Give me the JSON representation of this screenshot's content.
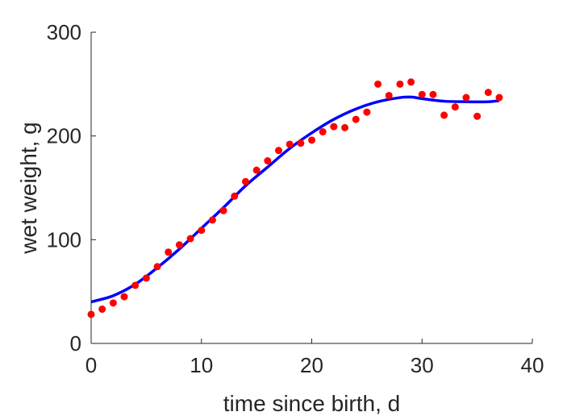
{
  "chart_data": {
    "type": "scatter",
    "title": "",
    "xlabel": "time since birth, d",
    "ylabel": "wet weight, g",
    "xlim": [
      0,
      40
    ],
    "ylim": [
      0,
      300
    ],
    "xticks": [
      0,
      10,
      20,
      30,
      40
    ],
    "yticks": [
      0,
      100,
      200,
      300
    ],
    "grid": false,
    "series": [
      {
        "type": "scatter",
        "color": "#ff0000",
        "points": [
          [
            0,
            28
          ],
          [
            1,
            33
          ],
          [
            2,
            39
          ],
          [
            3,
            45
          ],
          [
            4,
            56
          ],
          [
            5,
            63
          ],
          [
            6,
            74
          ],
          [
            7,
            88
          ],
          [
            8,
            95
          ],
          [
            9,
            101
          ],
          [
            10,
            109
          ],
          [
            11,
            119
          ],
          [
            12,
            128
          ],
          [
            13,
            142
          ],
          [
            14,
            156
          ],
          [
            15,
            167
          ],
          [
            16,
            176
          ],
          [
            17,
            186
          ],
          [
            18,
            192
          ],
          [
            19,
            193
          ],
          [
            20,
            196
          ],
          [
            21,
            204
          ],
          [
            22,
            209
          ],
          [
            23,
            208
          ],
          [
            24,
            216
          ],
          [
            25,
            223
          ],
          [
            26,
            250
          ],
          [
            27,
            239
          ],
          [
            28,
            250
          ],
          [
            29,
            252
          ],
          [
            30,
            240
          ],
          [
            31,
            240
          ],
          [
            32,
            220
          ],
          [
            33,
            228
          ],
          [
            34,
            237
          ],
          [
            35,
            219
          ],
          [
            36,
            242
          ],
          [
            37,
            237
          ]
        ]
      },
      {
        "type": "line",
        "color": "#0000ff",
        "points": [
          [
            0,
            40
          ],
          [
            2,
            46
          ],
          [
            4,
            57
          ],
          [
            6,
            73
          ],
          [
            8,
            91
          ],
          [
            10,
            111
          ],
          [
            12,
            131
          ],
          [
            14,
            152
          ],
          [
            16,
            170
          ],
          [
            18,
            188
          ],
          [
            20,
            203
          ],
          [
            22,
            216
          ],
          [
            24,
            226
          ],
          [
            26,
            233
          ],
          [
            28,
            237
          ],
          [
            29,
            237.5
          ],
          [
            30,
            236
          ],
          [
            32,
            233.5
          ],
          [
            34,
            233
          ],
          [
            36,
            233
          ],
          [
            37,
            234
          ]
        ]
      }
    ]
  }
}
